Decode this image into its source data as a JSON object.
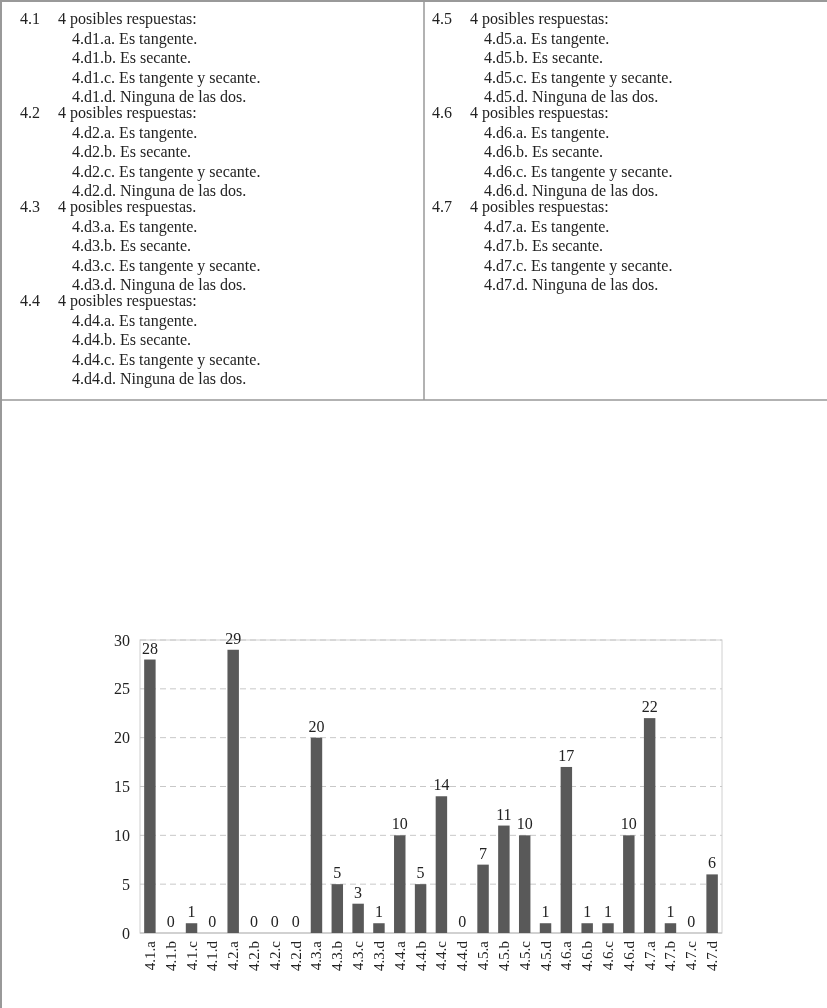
{
  "chart_data": {
    "type": "bar",
    "annotations": [
      "4.1",
      "4 posibles respuestas:",
      "4.d1.a.  Es tangente.",
      "4.d1.b.  Es secante.",
      "4.d1.c.  Es tangente y secante.",
      "4.d1.d.  Ninguna de las dos.",
      "4.2",
      "4 posibles respuestas:",
      "4.d2.a.  Es tangente.",
      "4.d2.b.  Es secante.",
      "4.d2.c.  Es tangente y secante.",
      "4.d2.d.  Ninguna de las dos.",
      "4.3",
      "4 posibles respuestas.",
      "4.d3.a.  Es tangente.",
      "4.d3.b.  Es secante.",
      "4.d3.c.  Es tangente y secante.",
      "4.d3.d.  Ninguna de las dos.",
      "4.4",
      "4 posibles respuestas:",
      "4.d4.a.  Es tangente.",
      "4.d4.b.  Es secante.",
      "4.d4.c.  Es tangente y secante.",
      "4.d4.d.  Ninguna de las dos.",
      "4.5",
      "4 posibles respuestas:",
      "4.d5.a.  Es tangente.",
      "4.d5.b.  Es secante.",
      "4.d5.c.  Es tangente y secante.",
      "4.d5.d.  Ninguna de las dos.",
      "4.6",
      "4 posibles respuestas:",
      "4.d6.a.  Es tangente.",
      "4.d6.b.  Es secante.",
      "4.d6.c.  Es tangente y secante.",
      "4.d6.d.  Ninguna de las dos.",
      "4.7",
      "4 posibles respuestas:",
      "4.d7.a.  Es tangente.",
      "4.d7.b.  Es secante.",
      "4.d7.c.  Es tangente y secante.",
      "4.d7.d.  Ninguna de las dos."
    ],
    "categories": [
      "4.1.a",
      "4.1.b",
      "4.1.c",
      "4.1.d",
      "4.2.a",
      "4.2.b",
      "4.2.c",
      "4.2.d",
      "4.3.a",
      "4.3.b",
      "4.3.c",
      "4.3.d",
      "4.4.a",
      "4.4.b",
      "4.4.c",
      "4.4.d",
      "4.5.a",
      "4.5.b",
      "4.5.c",
      "4.5.d",
      "4.6.a",
      "4.6.b",
      "4.6.c",
      "4.6.d",
      "4.7.a",
      "4.7.b",
      "4.7.c",
      "4.7.d"
    ],
    "values": [
      28,
      0,
      1,
      0,
      29,
      0,
      0,
      0,
      20,
      5,
      3,
      1,
      10,
      5,
      14,
      0,
      7,
      11,
      10,
      1,
      17,
      1,
      1,
      10,
      22,
      1,
      0,
      6
    ],
    "color": "#595959",
    "ylim": [
      0,
      30
    ],
    "yticks": [
      0,
      5,
      10,
      15,
      20,
      25,
      30
    ],
    "grid": "y",
    "data_labels": true
  }
}
